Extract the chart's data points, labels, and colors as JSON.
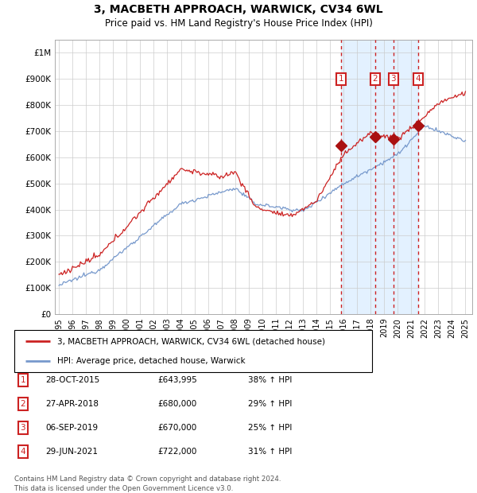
{
  "title1": "3, MACBETH APPROACH, WARWICK, CV34 6WL",
  "title2": "Price paid vs. HM Land Registry's House Price Index (HPI)",
  "ylabel_ticks": [
    "£0",
    "£100K",
    "£200K",
    "£300K",
    "£400K",
    "£500K",
    "£600K",
    "£700K",
    "£800K",
    "£900K",
    "£1M"
  ],
  "ytick_values": [
    0,
    100000,
    200000,
    300000,
    400000,
    500000,
    600000,
    700000,
    800000,
    900000,
    1000000
  ],
  "ylim": [
    0,
    1050000
  ],
  "xlim_start": 1994.7,
  "xlim_end": 2025.5,
  "xtick_years": [
    1995,
    1996,
    1997,
    1998,
    1999,
    2000,
    2001,
    2002,
    2003,
    2004,
    2005,
    2006,
    2007,
    2008,
    2009,
    2010,
    2011,
    2012,
    2013,
    2014,
    2015,
    2016,
    2017,
    2018,
    2019,
    2020,
    2021,
    2022,
    2023,
    2024,
    2025
  ],
  "sale_dates": [
    2015.83,
    2018.32,
    2019.68,
    2021.49
  ],
  "sale_prices": [
    643995,
    680000,
    670000,
    722000
  ],
  "sale_labels": [
    "1",
    "2",
    "3",
    "4"
  ],
  "shade_start": 2015.83,
  "shade_end": 2021.49,
  "line_color_red": "#cc2222",
  "line_color_blue": "#7799cc",
  "shade_color": "#ddeeff",
  "dashed_color": "#cc2222",
  "marker_color": "#aa1111",
  "label_box_color": "#cc2222",
  "grid_color": "#cccccc",
  "legend_entries": [
    "3, MACBETH APPROACH, WARWICK, CV34 6WL (detached house)",
    "HPI: Average price, detached house, Warwick"
  ],
  "table_rows": [
    [
      "1",
      "28-OCT-2015",
      "£643,995",
      "38% ↑ HPI"
    ],
    [
      "2",
      "27-APR-2018",
      "£680,000",
      "29% ↑ HPI"
    ],
    [
      "3",
      "06-SEP-2019",
      "£670,000",
      "25% ↑ HPI"
    ],
    [
      "4",
      "29-JUN-2021",
      "£722,000",
      "31% ↑ HPI"
    ]
  ],
  "footer": "Contains HM Land Registry data © Crown copyright and database right 2024.\nThis data is licensed under the Open Government Licence v3.0."
}
